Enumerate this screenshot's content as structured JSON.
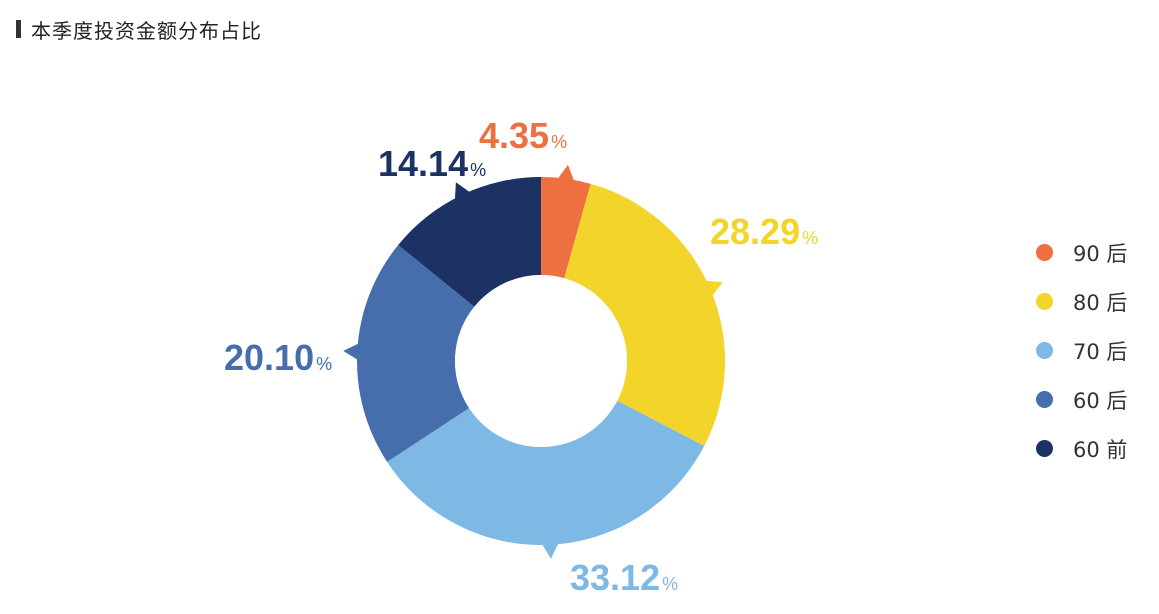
{
  "title": "本季度投资金额分布占比",
  "chart_data": {
    "type": "pie",
    "donut": true,
    "unit": "%",
    "categories": [
      "90后",
      "80后",
      "70后",
      "60后",
      "60前"
    ],
    "legend_labels": [
      "90 后",
      "80 后",
      "70 后",
      "60 后",
      "60 前"
    ],
    "values": [
      4.35,
      28.29,
      33.12,
      20.1,
      14.14
    ],
    "value_labels": [
      "4.35",
      "28.29",
      "33.12",
      "20.10",
      "14.14"
    ],
    "colors": [
      "#EE7041",
      "#F2D42A",
      "#7EB8E4",
      "#466EAD",
      "#1D3264"
    ],
    "legend": "right",
    "start": "top",
    "direction": "clockwise"
  }
}
